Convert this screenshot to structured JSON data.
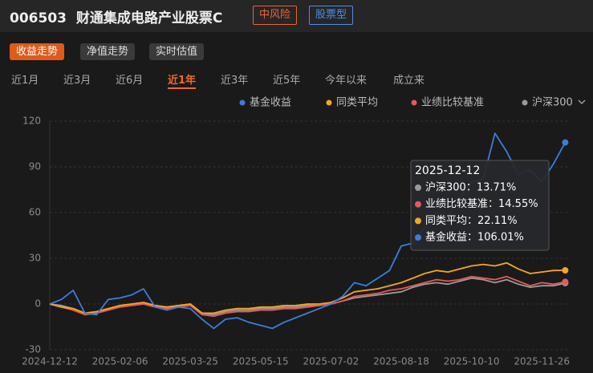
{
  "header": {
    "code": "006503",
    "name": "财通集成电路产业股票C",
    "risk_tag": "中风险",
    "type_tag": "股票型"
  },
  "buttons": [
    "收益走势",
    "净值走势",
    "实时估值"
  ],
  "periods": [
    "近1月",
    "近3月",
    "近6月",
    "近1年",
    "近3年",
    "近5年",
    "今年以来",
    "成立来"
  ],
  "chart_data": {
    "type": "line",
    "categories": [
      "2024-12-12",
      null,
      null,
      null,
      null,
      null,
      "2025-02-06",
      null,
      null,
      null,
      null,
      null,
      "2025-03-25",
      null,
      null,
      null,
      null,
      null,
      "2025-05-15",
      null,
      null,
      null,
      null,
      null,
      "2025-07-02",
      null,
      null,
      null,
      null,
      null,
      "2025-08-18",
      null,
      null,
      null,
      null,
      null,
      "2025-10-10",
      null,
      null,
      null,
      null,
      null,
      "2025-11-26",
      null,
      null
    ],
    "series": [
      {
        "name": "基金收益",
        "color": "#3b7ddd",
        "values": [
          0,
          3,
          9,
          -6,
          -7,
          3,
          4,
          6,
          10,
          -2,
          -4,
          -2,
          -3,
          -10,
          -16,
          -10,
          -9,
          -12,
          -14,
          -16,
          -12,
          -9,
          -6,
          -3,
          0,
          5,
          14,
          12,
          17,
          22,
          38,
          40,
          50,
          60,
          58,
          70,
          80,
          82,
          112,
          100,
          85,
          88,
          80,
          92,
          106.01
        ]
      },
      {
        "name": "同类平均",
        "color": "#f5a623",
        "values": [
          0,
          -2,
          -3,
          -6,
          -5,
          -3,
          -1,
          0,
          1,
          -1,
          -2,
          -1,
          0,
          -6,
          -6,
          -4,
          -3,
          -3,
          -2,
          -2,
          -1,
          -1,
          0,
          0,
          1,
          4,
          8,
          9,
          10,
          12,
          14,
          17,
          20,
          22,
          21,
          23,
          25,
          26,
          25,
          27,
          23,
          20,
          21,
          22,
          22.11
        ]
      },
      {
        "name": "业绩比较基准",
        "color": "#e85858",
        "values": [
          0,
          -2,
          -4,
          -7,
          -6,
          -4,
          -2,
          -1,
          0,
          -2,
          -3,
          -2,
          -1,
          -7,
          -8,
          -6,
          -5,
          -5,
          -4,
          -4,
          -3,
          -3,
          -2,
          -1,
          0,
          2,
          5,
          6,
          7,
          9,
          10,
          12,
          14,
          16,
          15,
          16,
          18,
          17,
          16,
          18,
          15,
          12,
          14,
          13,
          14.55
        ]
      },
      {
        "name": "沪深300",
        "color": "#9a9a9a",
        "values": [
          0,
          -1,
          -3,
          -6,
          -5,
          -3,
          -1,
          0,
          1,
          -1,
          -2,
          -1,
          0,
          -6,
          -7,
          -5,
          -4,
          -4,
          -3,
          -3,
          -2,
          -2,
          -1,
          -1,
          0,
          2,
          4,
          5,
          6,
          7,
          8,
          11,
          13,
          14,
          13,
          15,
          17,
          16,
          14,
          16,
          13,
          11,
          12,
          12,
          13.71
        ]
      }
    ],
    "ylim": [
      -30,
      120
    ],
    "yticks": [
      -30,
      0,
      30,
      60,
      90,
      120
    ],
    "grid": true,
    "tooltip": {
      "title": "2025-12-12",
      "items": [
        "沪深300：13.71%",
        "业绩比较基准：14.55%",
        "同类平均：22.11%",
        "基金收益：106.01%"
      ]
    }
  }
}
